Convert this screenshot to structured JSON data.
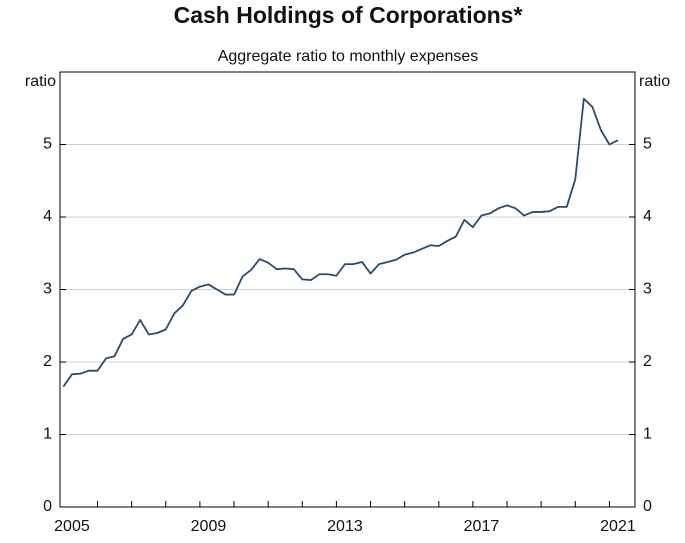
{
  "chart_data": {
    "type": "line",
    "title": "Cash Holdings of Corporations*",
    "subtitle": "Aggregate ratio to monthly expenses",
    "ylabel": "ratio",
    "y2label": "ratio",
    "x": [
      2005.0,
      2005.25,
      2005.5,
      2005.75,
      2006.0,
      2006.25,
      2006.5,
      2006.75,
      2007.0,
      2007.25,
      2007.5,
      2007.75,
      2008.0,
      2008.25,
      2008.5,
      2008.75,
      2009.0,
      2009.25,
      2009.5,
      2009.75,
      2010.0,
      2010.25,
      2010.5,
      2010.75,
      2011.0,
      2011.25,
      2011.5,
      2011.75,
      2012.0,
      2012.25,
      2012.5,
      2012.75,
      2013.0,
      2013.25,
      2013.5,
      2013.75,
      2014.0,
      2014.25,
      2014.5,
      2014.75,
      2015.0,
      2015.25,
      2015.5,
      2015.75,
      2016.0,
      2016.25,
      2016.5,
      2016.75,
      2017.0,
      2017.25,
      2017.5,
      2017.75,
      2018.0,
      2018.25,
      2018.5,
      2018.75,
      2019.0,
      2019.25,
      2019.5,
      2019.75,
      2020.0,
      2020.25,
      2020.5,
      2020.75,
      2021.0,
      2021.25
    ],
    "series": [
      {
        "name": "Cash holdings",
        "color": "#2e4a6b",
        "values": [
          1.66,
          1.83,
          1.84,
          1.88,
          1.88,
          2.05,
          2.08,
          2.32,
          2.38,
          2.58,
          2.38,
          2.4,
          2.45,
          2.67,
          2.78,
          2.98,
          3.04,
          3.07,
          3.0,
          2.93,
          2.93,
          3.18,
          3.27,
          3.42,
          3.37,
          3.28,
          3.29,
          3.28,
          3.14,
          3.13,
          3.21,
          3.21,
          3.19,
          3.35,
          3.35,
          3.38,
          3.22,
          3.35,
          3.38,
          3.41,
          3.48,
          3.51,
          3.56,
          3.61,
          3.6,
          3.67,
          3.73,
          3.96,
          3.86,
          4.02,
          4.05,
          4.12,
          4.16,
          4.12,
          4.02,
          4.07,
          4.07,
          4.08,
          4.14,
          4.14,
          4.52,
          5.63,
          5.52,
          5.2,
          5.0,
          5.06
        ]
      }
    ],
    "xlim": [
      2004.9,
      2021.75
    ],
    "xticks": [
      {
        "value": 2005.25,
        "label": "2005"
      },
      {
        "value": 2009.25,
        "label": "2009"
      },
      {
        "value": 2013.25,
        "label": "2013"
      },
      {
        "value": 2017.25,
        "label": "2017"
      },
      {
        "value": 2021.25,
        "label": "2021"
      }
    ],
    "xminorticks": [
      2006,
      2007,
      2008,
      2009,
      2010,
      2011,
      2012,
      2013,
      2014,
      2015,
      2016,
      2017,
      2018,
      2019,
      2020,
      2021
    ],
    "ylim": [
      0,
      6
    ],
    "yticks": [
      0,
      1,
      2,
      3,
      4,
      5
    ],
    "grid": true
  }
}
